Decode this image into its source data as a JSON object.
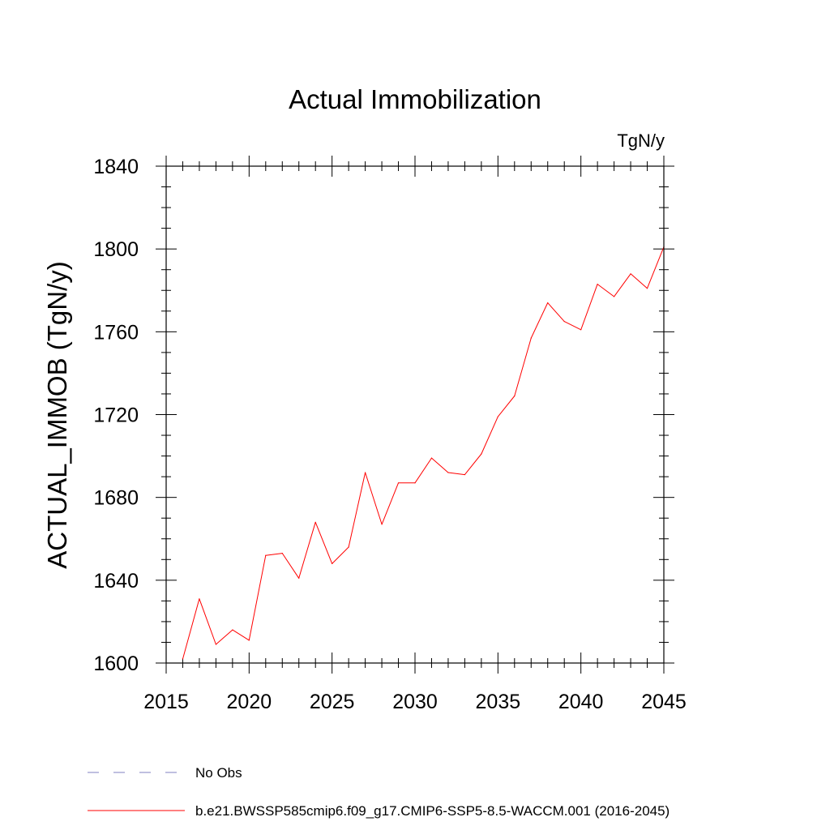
{
  "chart_data": {
    "type": "line",
    "title": "Actual Immobilization",
    "units_label": "TgN/y",
    "ylabel": "ACTUAL_IMMOB  (TgN/y)",
    "xlabel": "",
    "xlim": [
      2015,
      2045
    ],
    "ylim": [
      1600,
      1840
    ],
    "x_ticks": [
      2015,
      2020,
      2025,
      2030,
      2035,
      2040,
      2045
    ],
    "y_ticks": [
      1600,
      1640,
      1680,
      1720,
      1760,
      1800,
      1840
    ],
    "grid": false,
    "legend_position": "bottom",
    "series": [
      {
        "name": "b.e21.BWSSP585cmip6.f09_g17.CMIP6-SSP5-8.5-WACCM.001 (2016-2045)",
        "color": "#ff0000",
        "line_style": "solid",
        "x": [
          2016,
          2017,
          2018,
          2019,
          2020,
          2021,
          2022,
          2023,
          2024,
          2025,
          2026,
          2027,
          2028,
          2029,
          2030,
          2031,
          2032,
          2033,
          2034,
          2035,
          2036,
          2037,
          2038,
          2039,
          2040,
          2041,
          2042,
          2043,
          2044,
          2045
        ],
        "y": [
          1602,
          1631,
          1609,
          1616,
          1611,
          1652,
          1653,
          1641,
          1668,
          1648,
          1656,
          1692,
          1667,
          1687,
          1687,
          1699,
          1692,
          1691,
          1701,
          1719,
          1729,
          1757,
          1774,
          1765,
          1761,
          1783,
          1777,
          1788,
          1781,
          1801
        ]
      }
    ],
    "legend": [
      {
        "label": "No Obs",
        "color": "#8080c0",
        "line_style": "dashed"
      },
      {
        "label": "b.e21.BWSSP585cmip6.f09_g17.CMIP6-SSP5-8.5-WACCM.001 (2016-2045)",
        "color": "#ff0000",
        "line_style": "solid"
      }
    ]
  }
}
